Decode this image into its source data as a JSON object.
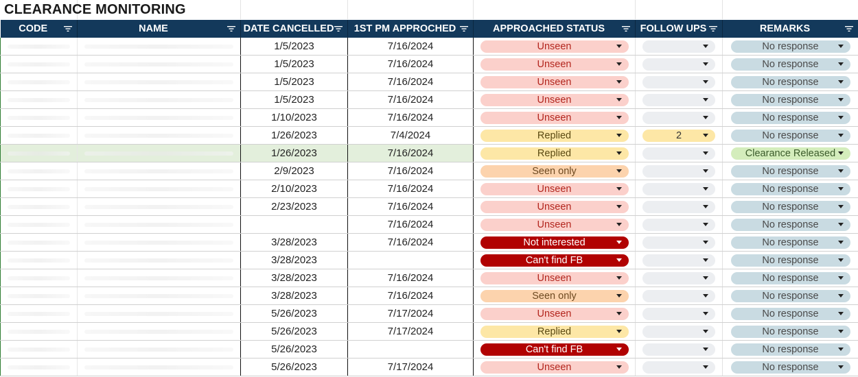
{
  "sheet": {
    "title": "CLEARANCE MONITORING",
    "columns": [
      "CODE",
      "NAME",
      "DATE CANCELLED",
      "1ST PM APPROCHED",
      "APPROACHED STATUS",
      "FOLLOW UPS",
      "REMARKS"
    ]
  },
  "status_colors": {
    "Unseen": "#fbd0cb",
    "Replied": "#fde7a6",
    "Seen only": "#fcd3ad",
    "Not interested": "#b10202",
    "Can't find FB": "#b10202",
    "header_bg": "#13395b"
  },
  "rows": [
    {
      "date_cancelled": "1/5/2023",
      "pm_approached": "7/16/2024",
      "status": "Unseen",
      "follow_up": "",
      "remarks": "No response"
    },
    {
      "date_cancelled": "1/5/2023",
      "pm_approached": "7/16/2024",
      "status": "Unseen",
      "follow_up": "",
      "remarks": "No response"
    },
    {
      "date_cancelled": "1/5/2023",
      "pm_approached": "7/16/2024",
      "status": "Unseen",
      "follow_up": "",
      "remarks": "No response"
    },
    {
      "date_cancelled": "1/5/2023",
      "pm_approached": "7/16/2024",
      "status": "Unseen",
      "follow_up": "",
      "remarks": "No response"
    },
    {
      "date_cancelled": "1/10/2023",
      "pm_approached": "7/16/2024",
      "status": "Unseen",
      "follow_up": "",
      "remarks": "No response"
    },
    {
      "date_cancelled": "1/26/2023",
      "pm_approached": "7/4/2024",
      "status": "Replied",
      "follow_up": "2",
      "remarks": "No response"
    },
    {
      "date_cancelled": "1/26/2023",
      "pm_approached": "7/16/2024",
      "status": "Replied",
      "follow_up": "",
      "remarks": "Clearance Released"
    },
    {
      "date_cancelled": "2/9/2023",
      "pm_approached": "7/16/2024",
      "status": "Seen only",
      "follow_up": "",
      "remarks": "No response"
    },
    {
      "date_cancelled": "2/10/2023",
      "pm_approached": "7/16/2024",
      "status": "Unseen",
      "follow_up": "",
      "remarks": "No response"
    },
    {
      "date_cancelled": "2/23/2023",
      "pm_approached": "7/16/2024",
      "status": "Unseen",
      "follow_up": "",
      "remarks": "No response"
    },
    {
      "date_cancelled": "",
      "pm_approached": "7/16/2024",
      "status": "Unseen",
      "follow_up": "",
      "remarks": "No response"
    },
    {
      "date_cancelled": "3/28/2023",
      "pm_approached": "7/16/2024",
      "status": "Not interested",
      "follow_up": "",
      "remarks": "No response"
    },
    {
      "date_cancelled": "3/28/2023",
      "pm_approached": "",
      "status": "Can't find FB",
      "follow_up": "",
      "remarks": "No response"
    },
    {
      "date_cancelled": "3/28/2023",
      "pm_approached": "7/16/2024",
      "status": "Unseen",
      "follow_up": "",
      "remarks": "No response"
    },
    {
      "date_cancelled": "3/28/2023",
      "pm_approached": "7/16/2024",
      "status": "Seen only",
      "follow_up": "",
      "remarks": "No response"
    },
    {
      "date_cancelled": "5/26/2023",
      "pm_approached": "7/17/2024",
      "status": "Unseen",
      "follow_up": "",
      "remarks": "No response"
    },
    {
      "date_cancelled": "5/26/2023",
      "pm_approached": "7/17/2024",
      "status": "Replied",
      "follow_up": "",
      "remarks": "No response"
    },
    {
      "date_cancelled": "5/26/2023",
      "pm_approached": "",
      "status": "Can't find FB",
      "follow_up": "",
      "remarks": "No response"
    },
    {
      "date_cancelled": "5/26/2023",
      "pm_approached": "7/17/2024",
      "status": "Unseen",
      "follow_up": "",
      "remarks": "No response"
    }
  ]
}
